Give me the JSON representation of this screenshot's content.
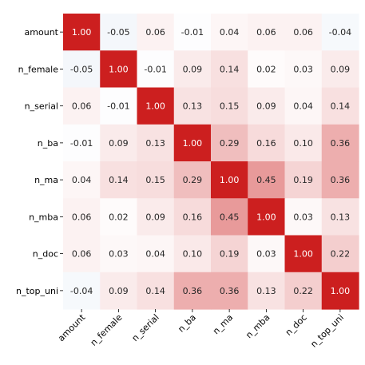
{
  "chart_data": {
    "type": "heatmap",
    "title": "",
    "xlabel": "",
    "ylabel": "",
    "rows": [
      "amount",
      "n_female",
      "n_serial",
      "n_ba",
      "n_ma",
      "n_mba",
      "n_doc",
      "n_top_uni"
    ],
    "columns": [
      "amount",
      "n_female",
      "n_serial",
      "n_ba",
      "n_ma",
      "n_mba",
      "n_doc",
      "n_top_uni"
    ],
    "values": [
      [
        1.0,
        -0.05,
        0.06,
        -0.01,
        0.04,
        0.06,
        0.06,
        -0.04
      ],
      [
        -0.05,
        1.0,
        -0.01,
        0.09,
        0.14,
        0.02,
        0.03,
        0.09
      ],
      [
        0.06,
        -0.01,
        1.0,
        0.13,
        0.15,
        0.09,
        0.04,
        0.14
      ],
      [
        -0.01,
        0.09,
        0.13,
        1.0,
        0.29,
        0.16,
        0.1,
        0.36
      ],
      [
        0.04,
        0.14,
        0.15,
        0.29,
        1.0,
        0.45,
        0.19,
        0.36
      ],
      [
        0.06,
        0.02,
        0.09,
        0.16,
        0.45,
        1.0,
        0.03,
        0.13
      ],
      [
        0.06,
        0.03,
        0.04,
        0.1,
        0.19,
        0.03,
        1.0,
        0.22
      ],
      [
        -0.04,
        0.09,
        0.14,
        0.36,
        0.36,
        0.13,
        0.22,
        1.0
      ]
    ],
    "value_format": "2 decimals",
    "colormap": {
      "diverging": true,
      "negative_color": "#2166ac",
      "center_color": "#ffffff",
      "positive_color": "#cc1f1f",
      "vmin": -1,
      "vmax": 1
    },
    "colorbar": false,
    "grid": false,
    "x_tick_rotation": 45
  }
}
